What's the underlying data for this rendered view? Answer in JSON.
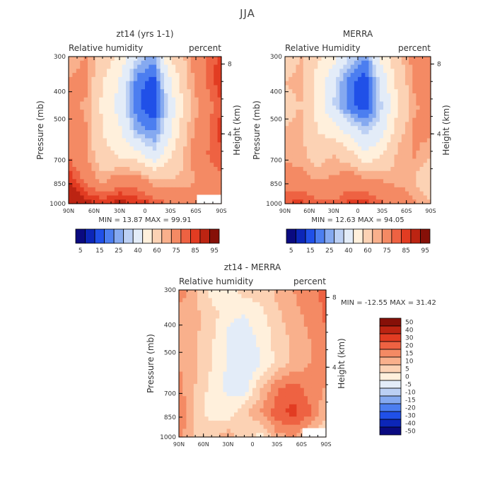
{
  "main_title": "JJA",
  "chart_data": [
    {
      "type": "heatmap",
      "title": "zt14 (yrs 1-1)",
      "left_label": "Relative humidity",
      "right_label": "percent",
      "ylabel": "Pressure (mb)",
      "ylabel_right": "Height (km)",
      "x_ticks": [
        "90N",
        "60N",
        "30N",
        "0",
        "30S",
        "60S",
        "90S"
      ],
      "y_ticks": [
        "300",
        "400",
        "500",
        "700",
        "850",
        "1000"
      ],
      "y_tick_values": [
        300,
        400,
        500,
        700,
        850,
        1000
      ],
      "height_ticks": [
        "8",
        "4"
      ],
      "height_tick_values": [
        8,
        4
      ],
      "min_max": "MIN =   13.87   MAX =   99.91",
      "colorbar_labels": [
        "5",
        "15",
        "25",
        "40",
        "60",
        "75",
        "85",
        "95"
      ],
      "colorbar_colors": [
        "#0a0a80",
        "#0c26b8",
        "#2050e8",
        "#4c7ef0",
        "#85a9f0",
        "#bcd0f4",
        "#e3ecf8",
        "#fff0dc",
        "#fcd2b4",
        "#f9b08c",
        "#f48a64",
        "#ee6242",
        "#e23c22",
        "#bc2412",
        "#861008"
      ],
      "field": [
        [
          60,
          66,
          56,
          48,
          30,
          22,
          50,
          62,
          75,
          82
        ],
        [
          66,
          68,
          50,
          40,
          18,
          12,
          40,
          60,
          74,
          84
        ],
        [
          66,
          64,
          48,
          36,
          16,
          10,
          34,
          56,
          70,
          80
        ],
        [
          70,
          66,
          50,
          42,
          24,
          18,
          38,
          60,
          72,
          82
        ],
        [
          74,
          66,
          54,
          48,
          44,
          32,
          48,
          64,
          74,
          80
        ],
        [
          84,
          72,
          62,
          70,
          70,
          60,
          60,
          62,
          68,
          74
        ],
        [
          95,
          88,
          84,
          88,
          84,
          80,
          74,
          70,
          70,
          72
        ]
      ],
      "white_patch": "60S-90S, 930-1000 mb"
    },
    {
      "type": "heatmap",
      "title": "MERRA",
      "left_label": "Relative Humidity",
      "right_label": "percent",
      "ylabel": "Pressure (mb)",
      "ylabel_right": "Height (km)",
      "x_ticks": [
        "90N",
        "60N",
        "30N",
        "0",
        "30S",
        "60S",
        "90S"
      ],
      "y_ticks": [
        "300",
        "400",
        "500",
        "700",
        "850",
        "1000"
      ],
      "y_tick_values": [
        300,
        400,
        500,
        700,
        850,
        1000
      ],
      "height_ticks": [
        "8",
        "4"
      ],
      "height_tick_values": [
        8,
        4
      ],
      "min_max": "MIN =   12.63   MAX =   94.05",
      "colorbar_labels": [
        "5",
        "15",
        "25",
        "40",
        "60",
        "75",
        "85",
        "95"
      ],
      "colorbar_colors": [
        "#0a0a80",
        "#0c26b8",
        "#2050e8",
        "#4c7ef0",
        "#85a9f0",
        "#bcd0f4",
        "#e3ecf8",
        "#fff0dc",
        "#fcd2b4",
        "#f9b08c",
        "#f48a64",
        "#ee6242",
        "#e23c22",
        "#bc2412",
        "#861008"
      ],
      "field": [
        [
          56,
          60,
          52,
          44,
          30,
          20,
          44,
          58,
          68,
          72
        ],
        [
          60,
          62,
          46,
          32,
          16,
          12,
          34,
          54,
          66,
          70
        ],
        [
          58,
          60,
          46,
          30,
          16,
          10,
          30,
          50,
          64,
          68
        ],
        [
          60,
          62,
          50,
          44,
          36,
          26,
          36,
          56,
          66,
          68
        ],
        [
          62,
          62,
          56,
          60,
          54,
          42,
          50,
          62,
          66,
          60
        ],
        [
          70,
          68,
          64,
          66,
          70,
          66,
          64,
          62,
          60,
          52
        ],
        [
          80,
          82,
          78,
          76,
          82,
          82,
          76,
          72,
          66,
          60
        ]
      ]
    },
    {
      "type": "heatmap",
      "title": "zt14 - MERRA",
      "left_label": "Relative humidity",
      "right_label": "percent",
      "ylabel": "Pressure (mb)",
      "ylabel_right": "Height (km)",
      "x_ticks": [
        "90N",
        "60N",
        "30N",
        "0",
        "30S",
        "60S",
        "90S"
      ],
      "y_ticks": [
        "300",
        "400",
        "500",
        "700",
        "850",
        "1000"
      ],
      "y_tick_values": [
        300,
        400,
        500,
        700,
        850,
        1000
      ],
      "height_ticks": [
        "8",
        "4"
      ],
      "height_tick_values": [
        8,
        4
      ],
      "min_max": "MIN = -12.55   MAX =   31.42",
      "colorbar_labels": [
        "50",
        "40",
        "30",
        "20",
        "15",
        "10",
        "5",
        "0",
        "-5",
        "-10",
        "-15",
        "-20",
        "-30",
        "-40",
        "-50"
      ],
      "colorbar_colors": [
        "#861008",
        "#bc2412",
        "#e23c22",
        "#ee6242",
        "#f48a64",
        "#f9b08c",
        "#fcd2b4",
        "#fff0dc",
        "#e3ecf8",
        "#bcd0f4",
        "#85a9f0",
        "#4c7ef0",
        "#2050e8",
        "#0c26b8",
        "#0a0a80"
      ],
      "field": [
        [
          14,
          6,
          -3,
          -3,
          2,
          3,
          6,
          10,
          14,
          16
        ],
        [
          8,
          6,
          3,
          -4,
          -5,
          -2,
          4,
          8,
          12,
          16
        ],
        [
          8,
          6,
          1,
          -6,
          -8,
          -4,
          2,
          6,
          10,
          14
        ],
        [
          10,
          6,
          0,
          -6,
          -9,
          -5,
          1,
          6,
          10,
          14
        ],
        [
          12,
          5,
          -2,
          -6,
          -8,
          4,
          14,
          18,
          12,
          10
        ],
        [
          14,
          4,
          -3,
          -3,
          4,
          10,
          18,
          22,
          16,
          6
        ],
        [
          12,
          5,
          4,
          8,
          2,
          -2,
          8,
          10,
          4,
          0
        ]
      ],
      "white_patch": "60S-90S, 930-1000 mb"
    }
  ]
}
